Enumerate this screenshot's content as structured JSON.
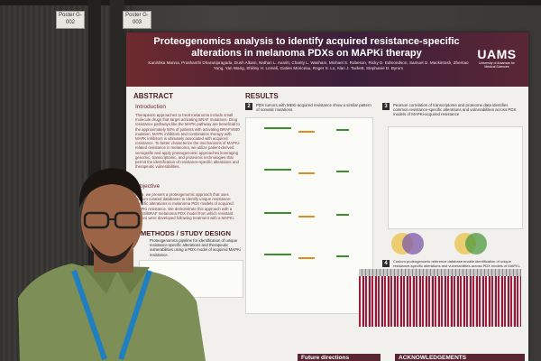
{
  "poster": {
    "tag_left": "Poster G-002",
    "tag_right": "Poster G-003",
    "title": "Proteogenomics analysis to identify acquired resistance-specific alterations in melanoma PDXs on MAPKi therapy",
    "authors": "Kanishka Manna, Prashanthi Dharanipragada, Dush Alkam, Nathan L. Avaritt, Charity L. Washam, Michael S. Robeson, Ricky D. Edmondson, Samuel G. Mackintosh, Zhentao Yang, Yan Wang, Shirley H. Lomeli, Gatien Moriceau, Roger S. Lo, Alan J. Tackett, Stephanie D. Byrum",
    "logo": "UAMS",
    "logo_sub": "University of Arkansas for Medical Sciences",
    "abstract_heading": "ABSTRACT",
    "introduction_heading": "Introduction",
    "introduction_text": "Therapeutic approaches to treat melanoma include small molecule drugs that target activating BRAF mutations. Drug resistance pathways like the MAPK pathway are beneficial to the approximately 50% of patients with activating BRAFV600 mutation. MAPK inhibitors and combination therapy with MAPK inhibitors is ultimately associated with acquired resistance. To better characterize the mechanisms of MAPKi-related resistance in melanoma, we utilize patient-derived xenografts and apply proteogenomic approaches leveraging genomic, transcriptomic, and proteomic technologies that permit the identification of resistance-specific alterations and therapeutic vulnerabilities.",
    "objective_heading": "Objective",
    "objective_text": "Here, we present a proteogenomic approach that uses custom curated databases to identify unique resistance-specific alterations in melanoma PDX models of acquired MAPKi resistance. We demonstrate this approach with a NRAS/BRAF melanoma PDX model from which resistant tumors were developed following treatment with a MAPKi.",
    "methods_heading": "METHODS / STUDY DESIGN",
    "methods_text": "Proteogenomics pipeline for identification of unique resistance-specific alterations and therapeutic vulnerabilities using a PDX model of acquired MAPKi resistance.",
    "results_heading": "RESULTS",
    "result2_caption": "PDX tumors with MEKi-acquired resistance show a similar pattern of somatic mutations",
    "result3_caption": "Pearson correlation of transcriptome and proteome data identifies common resistance-specific alterations and vulnerabilities across PDX models of MAPKi-acquired resistance",
    "result4_caption": "Custom proteogenomic reference database enable identification of unique resistance-specific alterations and vulnerabilities across PDX models of MAPKi-acquired resistance",
    "future_heading": "Future directions",
    "ack_heading": "ACKNOWLEDGEMENTS"
  },
  "colors": {
    "header_maroon": "#6e2a2e",
    "section_text": "#4b1f24",
    "heatmap_red": "#a61d3a",
    "bar_green": "#3a8f2e",
    "bar_orange": "#e08a22",
    "lanyard_blue": "#1f7fc0"
  }
}
